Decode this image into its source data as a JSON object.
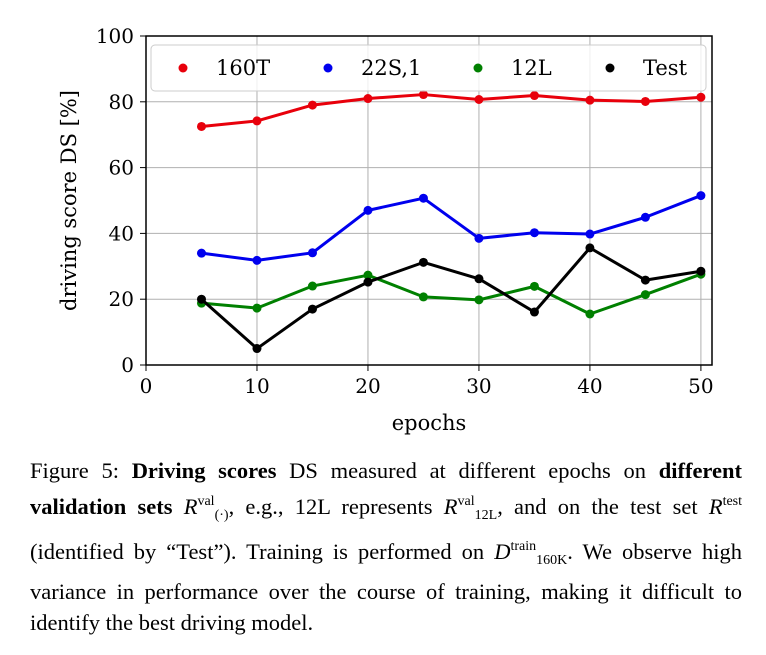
{
  "chart_data": {
    "type": "line",
    "xlabel": "epochs",
    "ylabel": "driving score DS [%]",
    "xlim": [
      0,
      51
    ],
    "ylim": [
      0,
      100
    ],
    "xticks": [
      0,
      10,
      20,
      30,
      40,
      50
    ],
    "yticks": [
      0,
      20,
      40,
      60,
      80,
      100
    ],
    "grid": true,
    "legend_placement": "top",
    "x": [
      5,
      10,
      15,
      20,
      25,
      30,
      35,
      40,
      45,
      50
    ],
    "series": [
      {
        "name": "160T",
        "color": "#e8000b",
        "values": [
          72.5,
          74.2,
          79.0,
          81.0,
          82.2,
          80.7,
          81.9,
          80.5,
          80.1,
          81.4
        ]
      },
      {
        "name": "22S,1",
        "color": "#0000ee",
        "values": [
          34.0,
          31.8,
          34.1,
          47.0,
          50.7,
          38.5,
          40.2,
          39.8,
          44.9,
          51.5
        ]
      },
      {
        "name": "12L",
        "color": "#008000",
        "values": [
          18.8,
          17.3,
          24.0,
          27.3,
          20.7,
          19.8,
          23.9,
          15.5,
          21.4,
          27.6
        ]
      },
      {
        "name": "Test",
        "color": "#000000",
        "values": [
          20.0,
          5.0,
          17.0,
          25.2,
          31.2,
          26.2,
          16.1,
          35.6,
          25.8,
          28.5
        ]
      }
    ]
  },
  "caption": {
    "figure_label": "Figure 5:",
    "bold_1": "Driving scores",
    "text_1": " DS measured at different epochs on ",
    "bold_2": "different validation sets",
    "set_R": "R",
    "sup_val": "val",
    "sub_dot": "(·)",
    "text_2": ", e.g., 12L represents ",
    "sub_12L": "12L",
    "text_3": ", and on the test set ",
    "sup_test": "test",
    "text_4": " (identified by “Test”). Training is performed on ",
    "set_D": "D",
    "sup_train": "train",
    "sub_160K": "160K",
    "text_5": ". We observe high variance in performance over the course of training, making it difficult to identify the best driving model."
  }
}
